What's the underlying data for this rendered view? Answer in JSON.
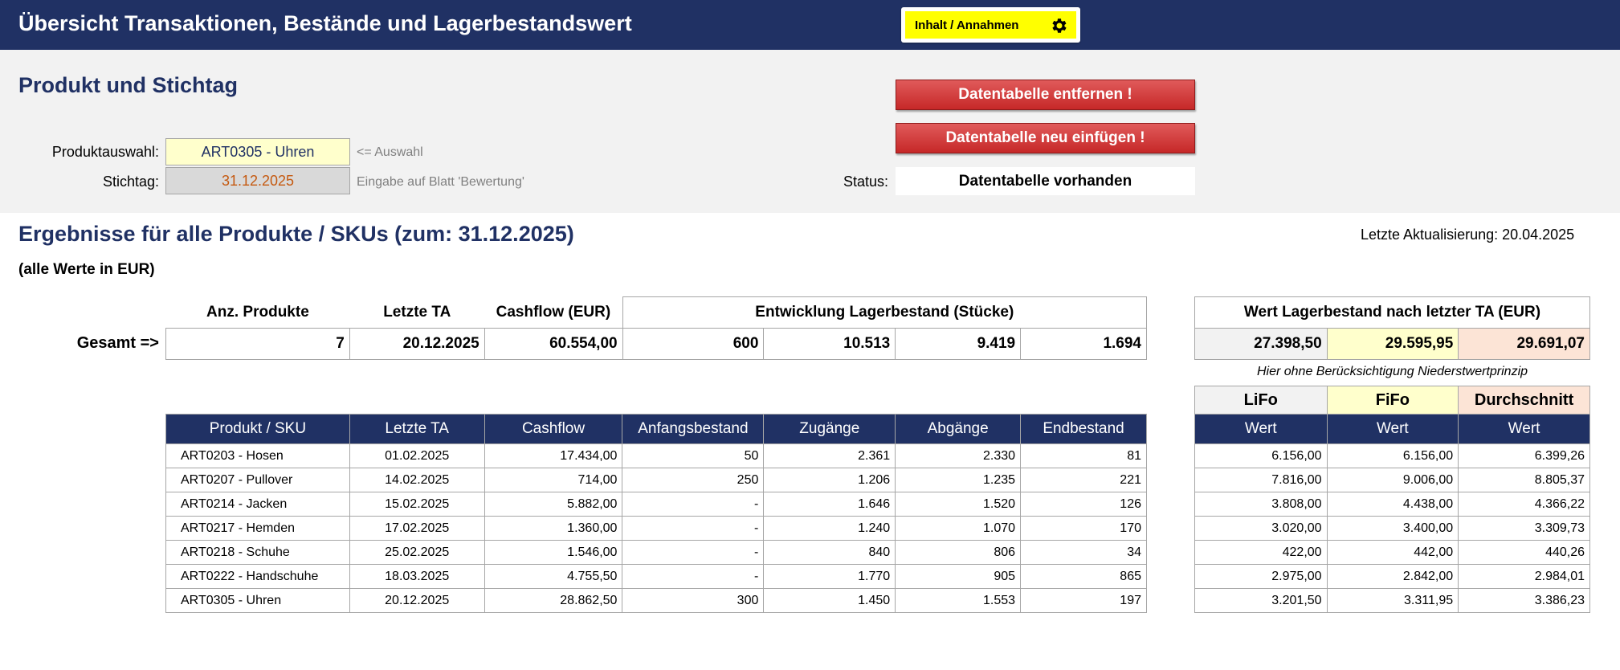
{
  "header": {
    "title": "Übersicht Transaktionen, Bestände und Lagerbestandswert",
    "info_button": "Inhalt / Annahmen"
  },
  "selection": {
    "title": "Produkt und Stichtag",
    "product_label": "Produktauswahl:",
    "product_value": "ART0305 - Uhren",
    "product_hint": "<= Auswahl",
    "date_label": "Stichtag:",
    "date_value": "31.12.2025",
    "date_hint": "Eingabe auf Blatt 'Bewertung'",
    "btn_remove": "Datentabelle entfernen !",
    "btn_insert": "Datentabelle neu einfügen !",
    "status_label": "Status:",
    "status_value": "Datentabelle vorhanden"
  },
  "results": {
    "title": "Ergebnisse für alle Produkte / SKUs (zum: 31.12.2025)",
    "last_update": "Letzte Aktualisierung: 20.04.2025",
    "unit_note": "(alle Werte in EUR)"
  },
  "summary": {
    "headers": {
      "count": "Anz. Produkte",
      "last_ta": "Letzte TA",
      "cashflow": "Cashflow (EUR)",
      "development": "Entwicklung Lagerbestand (Stücke)",
      "value_title": "Wert Lagerbestand nach letzter TA (EUR)"
    },
    "total_label": "Gesamt =>",
    "values": {
      "count": "7",
      "last_ta": "20.12.2025",
      "cashflow": "60.554,00",
      "start": "600",
      "in": "10.513",
      "out": "9.419",
      "end": "1.694",
      "lifo": "27.398,50",
      "fifo": "29.595,95",
      "avg": "29.691,07"
    },
    "note": "Hier ohne Berücksichtigung Niederstwertprinzip"
  },
  "table": {
    "columns": [
      "Produkt / SKU",
      "Letzte TA",
      "Cashflow",
      "Anfangsbestand",
      "Zugänge",
      "Abgänge",
      "Endbestand"
    ],
    "rows": [
      [
        "ART0203 - Hosen",
        "01.02.2025",
        "17.434,00",
        "50",
        "2.361",
        "2.330",
        "81"
      ],
      [
        "ART0207 - Pullover",
        "14.02.2025",
        "714,00",
        "250",
        "1.206",
        "1.235",
        "221"
      ],
      [
        "ART0214 - Jacken",
        "15.02.2025",
        "5.882,00",
        "-",
        "1.646",
        "1.520",
        "126"
      ],
      [
        "ART0217 - Hemden",
        "17.02.2025",
        "1.360,00",
        "-",
        "1.240",
        "1.070",
        "170"
      ],
      [
        "ART0218 - Schuhe",
        "25.02.2025",
        "1.546,00",
        "-",
        "840",
        "806",
        "34"
      ],
      [
        "ART0222 - Handschuhe",
        "18.03.2025",
        "4.755,50",
        "-",
        "1.770",
        "905",
        "865"
      ],
      [
        "ART0305 - Uhren",
        "20.12.2025",
        "28.862,50",
        "300",
        "1.450",
        "1.553",
        "197"
      ]
    ]
  },
  "valuation": {
    "methods": [
      "LiFo",
      "FiFo",
      "Durchschnitt"
    ],
    "col_label": "Wert",
    "rows": [
      [
        "6.156,00",
        "6.156,00",
        "6.399,26"
      ],
      [
        "7.816,00",
        "9.006,00",
        "8.805,37"
      ],
      [
        "3.808,00",
        "4.438,00",
        "4.366,22"
      ],
      [
        "3.020,00",
        "3.400,00",
        "3.309,73"
      ],
      [
        "422,00",
        "442,00",
        "440,26"
      ],
      [
        "2.975,00",
        "2.842,00",
        "2.984,01"
      ],
      [
        "3.201,50",
        "3.311,95",
        "3.386,23"
      ]
    ]
  },
  "colors": {
    "navy": "#203164",
    "yellow": "#ffffcc",
    "peach": "#fce4d6",
    "grey": "#f2f2f2",
    "red": "#c62828"
  }
}
